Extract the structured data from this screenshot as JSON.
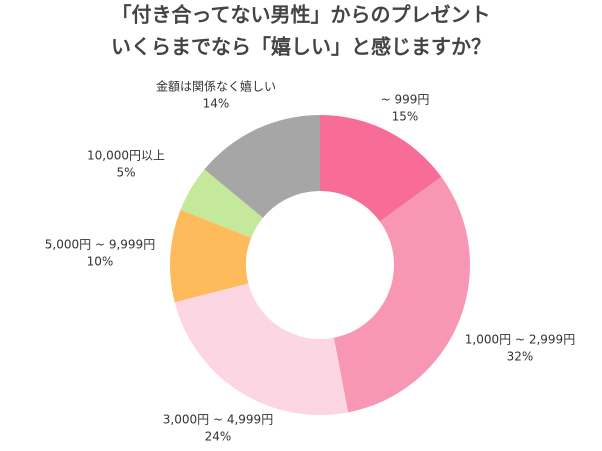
{
  "chart_data": {
    "type": "donut",
    "title": [
      "「付き合ってない男性」からのプレゼント",
      "いくらまでなら「嬉しい」と感じますか？"
    ],
    "categories": [
      "~ 999円",
      "1,000円 ~ 2,999円",
      "3,000円 ~ 4,999円",
      "5,000円 ~ 9,999円",
      "10,000円以上",
      "金額は関係なく嬉しい"
    ],
    "values": [
      15,
      32,
      24,
      10,
      5,
      14
    ],
    "value_labels": [
      "15%",
      "32%",
      "24%",
      "10%",
      "5%",
      "14%"
    ],
    "colors": [
      "#f76d98",
      "#f797b4",
      "#fcd6e3",
      "#fdbb5b",
      "#c4e99b",
      "#a6a6a6"
    ]
  }
}
